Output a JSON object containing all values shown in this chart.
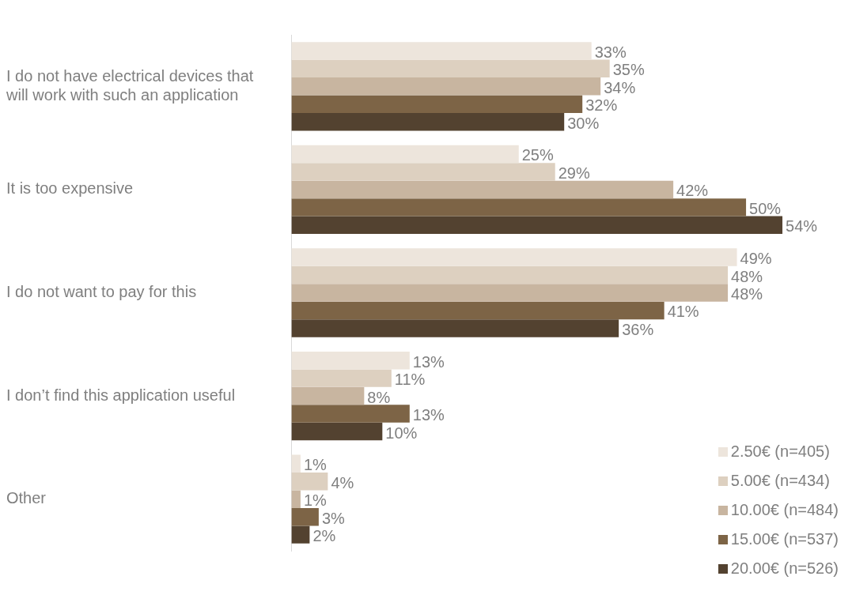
{
  "chart_data": {
    "type": "bar",
    "orientation": "horizontal",
    "categories": [
      "I do not have electrical devices that will work with such an application",
      "It is too expensive",
      "I do not want to pay for this",
      "I don’t find this application useful",
      "Other"
    ],
    "series": [
      {
        "name": "2.50€ (n=405)",
        "color": "#ede5dc",
        "values": [
          33,
          25,
          49,
          13,
          1
        ],
        "value_labels": [
          "33%",
          "25%",
          "49%",
          "13%",
          "1%"
        ]
      },
      {
        "name": "5.00€ (n=434)",
        "color": "#ddd0c0",
        "values": [
          35,
          29,
          48,
          11,
          4
        ],
        "value_labels": [
          "35%",
          "29%",
          "48%",
          "11%",
          "4%"
        ]
      },
      {
        "name": "10.00€ (n=484)",
        "color": "#c8b5a0",
        "values": [
          34,
          42,
          48,
          8,
          1
        ],
        "value_labels": [
          "34%",
          "42%",
          "48%",
          "8%",
          "1%"
        ]
      },
      {
        "name": "15.00€ (n=537)",
        "color": "#7d6446",
        "values": [
          32,
          50,
          41,
          13,
          3
        ],
        "value_labels": [
          "32%",
          "50%",
          "41%",
          "13%",
          "3%"
        ]
      },
      {
        "name": "20.00€ (n=526)",
        "color": "#534230",
        "values": [
          30,
          54,
          36,
          10,
          2
        ],
        "value_labels": [
          "30%",
          "54%",
          "36%",
          "10%",
          "2%"
        ]
      }
    ],
    "grid": false,
    "legend": "bottom right"
  }
}
